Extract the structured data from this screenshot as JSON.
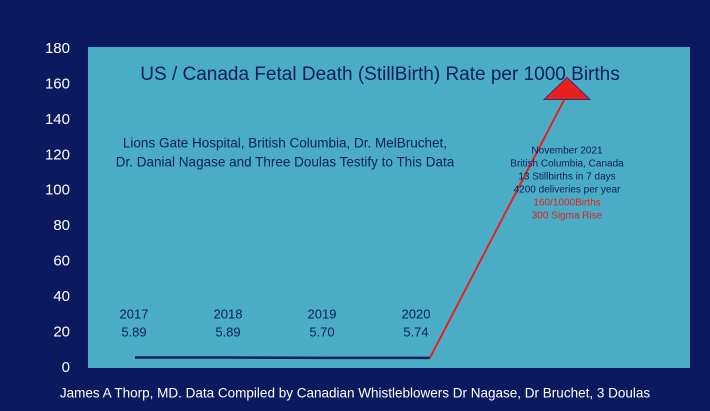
{
  "chart_data": {
    "type": "line",
    "title": "US / Canada Fetal Death (StillBirth) Rate per 1000 Births",
    "subtitle": [
      "Lions Gate Hospital, British Columbia, Dr. MelBruchet,",
      "Dr. Danial Nagase and Three Doulas Testify to This Data"
    ],
    "categories": [
      "2017",
      "2018",
      "2019",
      "2020"
    ],
    "series": [
      {
        "name": null,
        "color": "#0d1f5c",
        "values": [
          5.89,
          5.89,
          5.7,
          5.74
        ],
        "value_labels": [
          "5.89",
          "5.89",
          "5.70",
          "5.74"
        ]
      }
    ],
    "arrow": {
      "value": 160,
      "color": "#e8201e"
    },
    "annotation": {
      "lines": [
        "November 2021",
        "British Columbia, Canada",
        "13 Stillbirths in 7 days",
        "4200 deliveries per year"
      ],
      "highlight_lines": [
        "160/1000Births",
        "300 Sigma Rise"
      ],
      "highlight_color": "#d9261c"
    },
    "ylim": [
      0,
      180
    ],
    "yticks": [
      0,
      20,
      40,
      60,
      80,
      100,
      120,
      140,
      160,
      180
    ],
    "caption": "James A Thorp, MD. Data Compiled by Canadian Whistleblowers Dr Nagase, Dr Bruchet, 3 Doulas"
  }
}
